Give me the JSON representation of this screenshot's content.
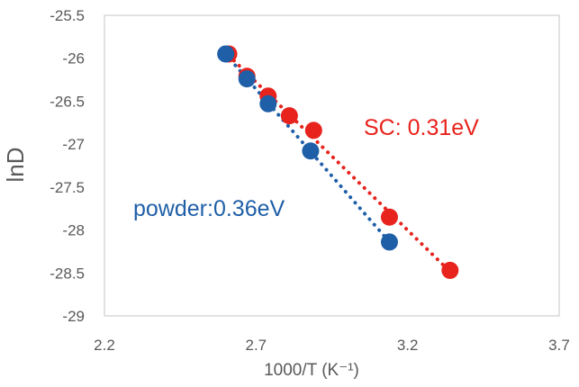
{
  "chart_data": {
    "type": "scatter",
    "title": "",
    "xlabel": "1000/T (K⁻¹)",
    "ylabel": "lnD",
    "xlim": [
      2.2,
      3.7
    ],
    "ylim": [
      -29,
      -25.5
    ],
    "x_ticks": [
      2.2,
      2.7,
      3.2,
      3.7
    ],
    "y_ticks": [
      -25.5,
      -26,
      -26.5,
      -27,
      -27.5,
      -28,
      -28.5,
      -29
    ],
    "x_tick_labels": [
      "2.2",
      "2.7",
      "3.2",
      "3.7"
    ],
    "y_tick_labels": [
      "-25.5",
      "-26",
      "-26.5",
      "-27",
      "-27.5",
      "-28",
      "-28.5",
      "-29"
    ],
    "grid": false,
    "trendline": "linear, dotted",
    "series": [
      {
        "color": "#e8221c",
        "x": [
          2.61,
          2.67,
          2.74,
          2.81,
          2.89,
          3.14,
          3.34
        ],
        "y": [
          -25.95,
          -26.21,
          -26.44,
          -26.67,
          -26.84,
          -27.85,
          -28.47
        ]
      },
      {
        "color": "#1f5fa8",
        "x": [
          2.6,
          2.67,
          2.74,
          2.88,
          3.14
        ],
        "y": [
          -25.95,
          -26.24,
          -26.53,
          -27.08,
          -28.14
        ]
      }
    ],
    "annotations": [
      {
        "text": "SC: 0.31eV",
        "color": "#e8221c"
      },
      {
        "text": "powder:0.36eV",
        "color": "#1f5fa8"
      }
    ]
  }
}
